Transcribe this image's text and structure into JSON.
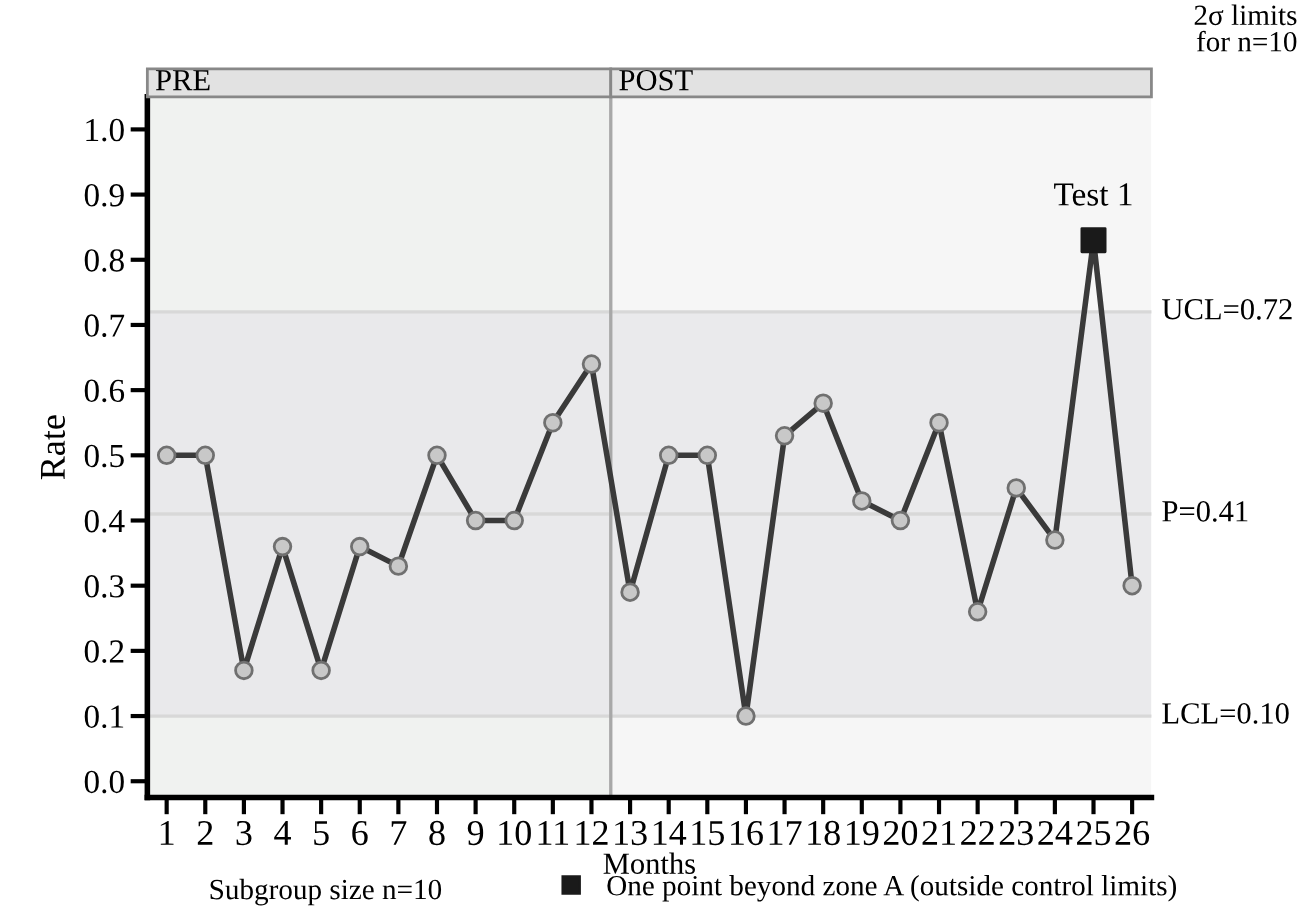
{
  "chart_data": {
    "type": "line",
    "xlabel": "Months",
    "ylabel": "Rate",
    "x": [
      1,
      2,
      3,
      4,
      5,
      6,
      7,
      8,
      9,
      10,
      11,
      12,
      13,
      14,
      15,
      16,
      17,
      18,
      19,
      20,
      21,
      22,
      23,
      24,
      25,
      26
    ],
    "series": [
      {
        "color": "#3a3a3a",
        "marker": "circle",
        "values": [
          0.5,
          0.5,
          0.17,
          0.36,
          0.17,
          0.36,
          0.33,
          0.5,
          0.4,
          0.4,
          0.55,
          0.64,
          0.29,
          0.5,
          0.5,
          0.1,
          0.53,
          0.58,
          0.43,
          0.4,
          0.55,
          0.26,
          0.45,
          0.37,
          0.83,
          0.3
        ]
      },
      {
        "type": "scatter",
        "name": "One point beyond zone A (outside control limits)",
        "color": "#1a1a1a",
        "marker": "square",
        "x": [
          25
        ],
        "values": [
          0.83
        ]
      }
    ],
    "xlim": [
      0.5,
      26.5
    ],
    "xticks": [
      1,
      2,
      3,
      4,
      5,
      6,
      7,
      8,
      9,
      10,
      11,
      12,
      13,
      14,
      15,
      16,
      17,
      18,
      19,
      20,
      21,
      22,
      23,
      24,
      25,
      26
    ],
    "ylim": [
      -0.025,
      1.05
    ],
    "yticks": [
      {
        "value": 0,
        "label": "0.0"
      },
      {
        "value": 0.1,
        "label": "0.1"
      },
      {
        "value": 0.2,
        "label": "0.2"
      },
      {
        "value": 0.3,
        "label": "0.3"
      },
      {
        "value": 0.4,
        "label": "0.4"
      },
      {
        "value": 0.5,
        "label": "0.5"
      },
      {
        "value": 0.6,
        "label": "0.6"
      },
      {
        "value": 0.7,
        "label": "0.7"
      },
      {
        "value": 0.8,
        "label": "0.8"
      },
      {
        "value": 0.9,
        "label": "0.9"
      },
      {
        "value": 1,
        "label": "1.0"
      }
    ],
    "ref_lines": [
      {
        "axis": "y",
        "value": 0.72,
        "label": "UCL=0.72",
        "color": "#d8d8d8"
      },
      {
        "axis": "y",
        "value": 0.41,
        "label": "P=0.41",
        "color": "#d8d8d8"
      },
      {
        "axis": "y",
        "value": 0.1,
        "label": "LCL=0.10",
        "color": "#d8d8d8"
      },
      {
        "axis": "x",
        "value": 12.5,
        "color": "#a8a8a8"
      }
    ],
    "bands": [
      {
        "axis": "x",
        "from": 0.5,
        "to": 12.5,
        "label": "PRE",
        "color": "#f0f2f0"
      },
      {
        "axis": "x",
        "from": 12.5,
        "to": 26.5,
        "label": "POST",
        "color": "#f6f6f6"
      },
      {
        "axis": "y",
        "from": 0.1,
        "to": 0.72,
        "color": "#e6e6e8"
      }
    ],
    "annotations": [
      {
        "text": "Test 1",
        "x": 25,
        "y": 0.83
      },
      "2σ limits\nfor n=10",
      "Subgroup size n=10"
    ],
    "legend": "bottom",
    "grid": false
  }
}
